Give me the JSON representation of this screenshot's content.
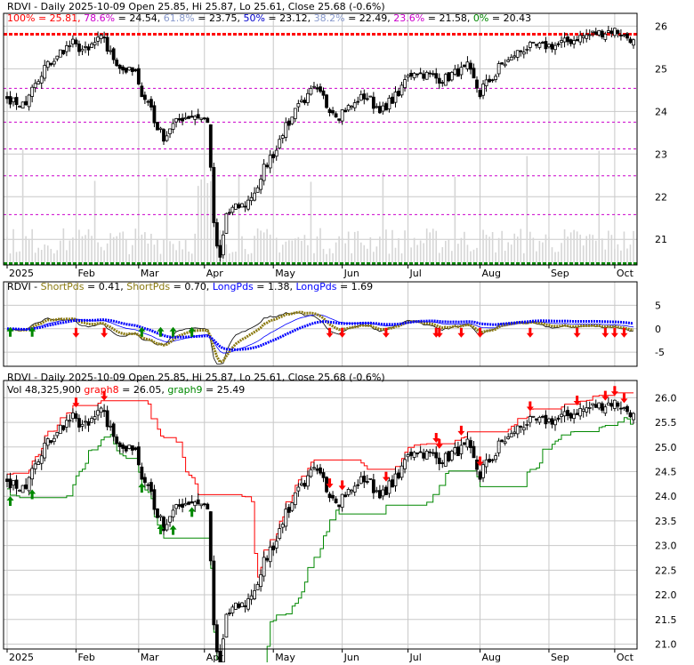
{
  "colors": {
    "background": "#ffffff",
    "grid": "#c8c8c8",
    "candle": "#000000",
    "fib_line": "#cc00cc",
    "fib_100": "#ff0000",
    "fib_0": "#008800",
    "short_pds": "#000000",
    "short_pds_2": "#8b7a10",
    "long_pds": "#0000ff",
    "graph8": "#ff0000",
    "graph9": "#008800",
    "arrow_up": "#008800",
    "arrow_down": "#ff0000"
  },
  "chart_data": [
    {
      "type": "candlestick",
      "panel": "price",
      "title": "RDVI - Daily 2025-10-09 Open 25.85, Hi 25.87, Lo 25.61, Close 25.68 (-0.6%)",
      "fib_legend": [
        {
          "text": "100% = 25.81,",
          "color": "#ff0000"
        },
        {
          "text": " 78.6%",
          "color": "#cc00cc"
        },
        {
          "text": " = 24.54,",
          "color": "#000000"
        },
        {
          "text": " 61.8%",
          "color": "#8899cc"
        },
        {
          "text": " = 23.75,",
          "color": "#000000"
        },
        {
          "text": " 50%",
          "color": "#0000cc"
        },
        {
          "text": " = 23.12,",
          "color": "#000000"
        },
        {
          "text": " 38.2%",
          "color": "#8899cc"
        },
        {
          "text": " = 22.49,",
          "color": "#000000"
        },
        {
          "text": " 23.6%",
          "color": "#cc00cc"
        },
        {
          "text": " = 21.58,",
          "color": "#000000"
        },
        {
          "text": " 0%",
          "color": "#008800"
        },
        {
          "text": " = 20.43",
          "color": "#000000"
        }
      ],
      "fib_levels": [
        25.81,
        24.54,
        23.75,
        23.12,
        22.49,
        21.58,
        20.43
      ],
      "ylim": [
        20.4,
        26.3
      ],
      "y_ticks": [
        21,
        22,
        23,
        24,
        25,
        26
      ],
      "x_ticks": [
        "2025",
        "Feb",
        "Mar",
        "Apr",
        "May",
        "Jun",
        "Jul",
        "Aug",
        "Sep",
        "Oct"
      ],
      "x_tick_dates": [
        "2025-01-02",
        "2025-02-03",
        "2025-03-03",
        "2025-04-01",
        "2025-05-01",
        "2025-06-02",
        "2025-07-01",
        "2025-08-01",
        "2025-09-02",
        "2025-10-01"
      ],
      "date_range": [
        "2025-01-02",
        "2025-10-09"
      ],
      "close_anchors": [
        {
          "date": "2025-01-02",
          "close": 24.3
        },
        {
          "date": "2025-01-10",
          "close": 24.15
        },
        {
          "date": "2025-01-20",
          "close": 25.05
        },
        {
          "date": "2025-01-31",
          "close": 25.6
        },
        {
          "date": "2025-02-07",
          "close": 25.4
        },
        {
          "date": "2025-02-14",
          "close": 25.75
        },
        {
          "date": "2025-02-21",
          "close": 25.05
        },
        {
          "date": "2025-02-28",
          "close": 24.9
        },
        {
          "date": "2025-03-07",
          "close": 24.1
        },
        {
          "date": "2025-03-13",
          "close": 23.4
        },
        {
          "date": "2025-03-21",
          "close": 23.85
        },
        {
          "date": "2025-03-27",
          "close": 23.9
        },
        {
          "date": "2025-04-02",
          "close": 23.8
        },
        {
          "date": "2025-04-04",
          "close": 21.4
        },
        {
          "date": "2025-04-08",
          "close": 20.55
        },
        {
          "date": "2025-04-10",
          "close": 21.6
        },
        {
          "date": "2025-04-21",
          "close": 21.9
        },
        {
          "date": "2025-04-30",
          "close": 22.9
        },
        {
          "date": "2025-05-12",
          "close": 24.15
        },
        {
          "date": "2025-05-20",
          "close": 24.5
        },
        {
          "date": "2025-05-30",
          "close": 23.9
        },
        {
          "date": "2025-06-11",
          "close": 24.35
        },
        {
          "date": "2025-06-20",
          "close": 24.0
        },
        {
          "date": "2025-07-03",
          "close": 24.95
        },
        {
          "date": "2025-07-16",
          "close": 24.75
        },
        {
          "date": "2025-07-28",
          "close": 25.05
        },
        {
          "date": "2025-08-01",
          "close": 24.4
        },
        {
          "date": "2025-08-12",
          "close": 25.1
        },
        {
          "date": "2025-08-22",
          "close": 25.5
        },
        {
          "date": "2025-09-05",
          "close": 25.55
        },
        {
          "date": "2025-09-19",
          "close": 25.8
        },
        {
          "date": "2025-10-01",
          "close": 25.9
        },
        {
          "date": "2025-10-09",
          "close": 25.68
        }
      ]
    },
    {
      "type": "line",
      "panel": "oscillator",
      "legend": [
        {
          "text": "RDVI - ",
          "color": "#000000"
        },
        {
          "text": "ShortPds",
          "color": "#8b7a10"
        },
        {
          "text": " = 0.41, ",
          "color": "#000000"
        },
        {
          "text": "ShortPds",
          "color": "#8b7a10"
        },
        {
          "text": " = 0.70, ",
          "color": "#000000"
        },
        {
          "text": "LongPds",
          "color": "#0000ff"
        },
        {
          "text": " = 1.38, ",
          "color": "#000000"
        },
        {
          "text": "LongPds",
          "color": "#0000ff"
        },
        {
          "text": " = 1.69",
          "color": "#000000"
        }
      ],
      "ylim": [
        -8,
        10
      ],
      "y_ticks": [
        5,
        0,
        -5
      ],
      "arrows_up_dates": [
        "2025-01-03",
        "2025-01-14",
        "2025-03-04",
        "2025-03-12",
        "2025-03-18",
        "2025-03-26"
      ],
      "arrows_down_dates": [
        "2025-02-03",
        "2025-02-14",
        "2025-05-27",
        "2025-06-02",
        "2025-06-20",
        "2025-07-14",
        "2025-07-15",
        "2025-07-24",
        "2025-08-01",
        "2025-08-25",
        "2025-09-15",
        "2025-09-26",
        "2025-10-01",
        "2025-10-06"
      ]
    },
    {
      "type": "candlestick",
      "panel": "stops",
      "title": "RDVI - Daily 2025-10-09 Open 25.85, Hi 25.87, Lo 25.61, Close 25.68 (-0.6%)",
      "legend": [
        {
          "text": "Vol 48,325,900",
          "color": "#000000"
        },
        {
          "text": "  graph8",
          "color": "#ff0000"
        },
        {
          "text": " = 26.05,",
          "color": "#000000"
        },
        {
          "text": "  graph9",
          "color": "#008800"
        },
        {
          "text": " = 25.49",
          "color": "#000000"
        }
      ],
      "ylim": [
        20.9,
        26.35
      ],
      "y_ticks": [
        21.0,
        21.5,
        22.0,
        22.5,
        23.0,
        23.5,
        24.0,
        24.5,
        25.0,
        25.5,
        26.0
      ],
      "x_ticks": [
        "2025",
        "Feb",
        "Mar",
        "Apr",
        "May",
        "Jun",
        "Jul",
        "Aug",
        "Sep",
        "Oct"
      ]
    }
  ]
}
